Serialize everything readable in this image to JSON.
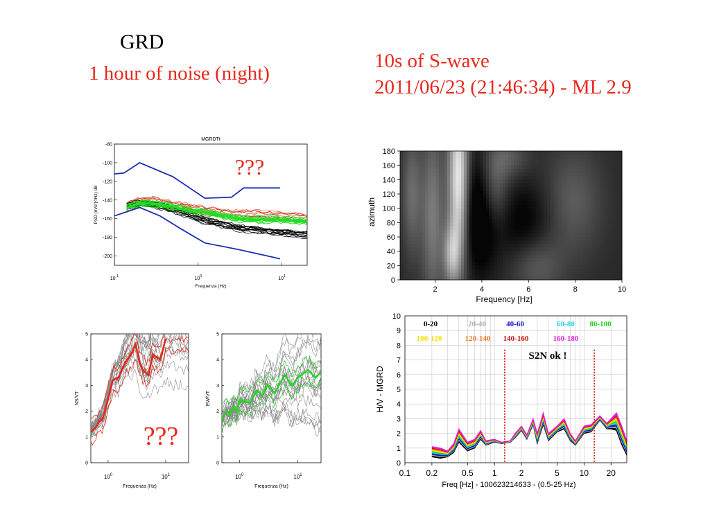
{
  "slide": {
    "station": "GRD",
    "noise_caption": "1 hour of noise (night)",
    "swave_caption": "10s of S-wave",
    "event_caption": "2011/06/23 (21:46:34) - ML 2.9"
  },
  "colors": {
    "accent_red": "#e8281e",
    "psd_upper": "#1b2fb3",
    "psd_black": "#000000",
    "psd_red": "#cc2200",
    "psd_green": "#22dd22",
    "hv_ns": "#e32a1c",
    "hv_ew": "#2ccf2c",
    "hv_gray": "#888888"
  },
  "chart_data": [
    {
      "id": "psd",
      "type": "line",
      "title": "MGRDTt",
      "xlabel": "Frequenza (Hz)",
      "ylabel": "PSD (m/s²)²/Hz) dB",
      "x_scale": "log",
      "xlim": [
        0.1,
        20
      ],
      "ylim": [
        -210,
        -80
      ],
      "x_ticks": [
        {
          "v": 0.1,
          "base": "10",
          "exp": "-1"
        },
        {
          "v": 1,
          "base": "10",
          "exp": "0"
        },
        {
          "v": 10,
          "base": "10",
          "exp": "1"
        }
      ],
      "y_ticks": [
        -80,
        -100,
        -120,
        -140,
        -160,
        -180,
        -200
      ],
      "annotation": "???",
      "series": [
        {
          "role": "upper model",
          "color": "#1b2fb3",
          "x": [
            0.1,
            0.13,
            0.2,
            0.5,
            1.2,
            2.5,
            3.5,
            9.5
          ],
          "y": [
            -112,
            -111,
            -100,
            -115,
            -138,
            -137,
            -127,
            -127
          ]
        },
        {
          "role": "lower model",
          "color": "#1b2fb3",
          "x": [
            0.1,
            0.2,
            0.35,
            0.6,
            1.2,
            3,
            9.5
          ],
          "y": [
            -157,
            -148,
            -157,
            -170,
            -186,
            -193,
            -203
          ]
        },
        {
          "role": "psd black",
          "color": "#000000",
          "x": [
            0.14,
            0.2,
            0.3,
            0.5,
            0.8,
            1.2,
            2,
            3,
            5,
            10,
            20
          ],
          "y": [
            -147,
            -143,
            -145,
            -150,
            -156,
            -162,
            -166,
            -170,
            -172,
            -175,
            -177
          ]
        },
        {
          "role": "psd red",
          "color": "#cc2200",
          "x": [
            0.14,
            0.2,
            0.3,
            0.5,
            0.8,
            1.2,
            2,
            3,
            5,
            10,
            20
          ],
          "y": [
            -147,
            -141,
            -141,
            -145,
            -148,
            -151,
            -154,
            -155,
            -155,
            -157,
            -159
          ]
        },
        {
          "role": "psd green",
          "color": "#22dd22",
          "x": [
            0.14,
            0.2,
            0.3,
            0.5,
            0.8,
            1.2,
            2,
            3,
            5,
            10,
            20
          ],
          "y": [
            -148,
            -143,
            -144,
            -147,
            -151,
            -153,
            -157,
            -160,
            -161,
            -161,
            -163
          ]
        }
      ]
    },
    {
      "id": "ns",
      "type": "line",
      "xlabel": "Frequenza (Hz)",
      "ylabel": "NS/VT",
      "x_scale": "log",
      "xlim": [
        0.5,
        25
      ],
      "ylim": [
        0,
        5
      ],
      "y_ticks": [
        0,
        1,
        2,
        3,
        4,
        5
      ],
      "x_ticks": [
        {
          "v": 1,
          "base": "10",
          "exp": "0"
        },
        {
          "v": 10,
          "base": "10",
          "exp": "1"
        }
      ],
      "annotation": "???",
      "series": [
        {
          "role": "mean",
          "color": "#e32a1c",
          "x": [
            0.5,
            0.6,
            0.7,
            0.8,
            0.9,
            1.0,
            1.2,
            1.5,
            2,
            2.5,
            3,
            3.5,
            4,
            5,
            6,
            8,
            10
          ],
          "y": [
            1.2,
            1.35,
            1.6,
            1.7,
            2.1,
            2.5,
            3.2,
            3.3,
            3.9,
            4.2,
            4.6,
            3.9,
            3.6,
            3.4,
            4.2,
            4.0,
            4.8
          ]
        }
      ]
    },
    {
      "id": "ew",
      "type": "line",
      "xlabel": "Frequenza (Hz)",
      "ylabel": "EW/VT",
      "x_scale": "log",
      "xlim": [
        0.5,
        25
      ],
      "ylim": [
        0,
        5
      ],
      "y_ticks": [
        0,
        1,
        2,
        3,
        4,
        5
      ],
      "x_ticks": [
        {
          "v": 1,
          "base": "10",
          "exp": "0"
        },
        {
          "v": 10,
          "base": "10",
          "exp": "1"
        }
      ],
      "series": [
        {
          "role": "mean",
          "color": "#2ccf2c",
          "x": [
            0.5,
            0.6,
            0.7,
            0.8,
            0.9,
            1.0,
            1.2,
            1.5,
            2,
            2.5,
            3,
            4,
            5,
            6,
            8,
            10,
            15,
            20,
            25
          ],
          "y": [
            1.7,
            2.0,
            1.9,
            2.2,
            2.0,
            2.4,
            2.4,
            2.3,
            2.8,
            2.6,
            3.0,
            2.7,
            3.1,
            3.4,
            3.0,
            3.3,
            3.6,
            3.3,
            3.5
          ]
        }
      ]
    },
    {
      "id": "azimuth",
      "type": "heatmap",
      "xlabel": "Frequency [Hz]",
      "ylabel": "azimuth",
      "xlim": [
        0.5,
        10
      ],
      "ylim": [
        0,
        180
      ],
      "x_ticks": [
        2,
        4,
        6,
        8,
        10
      ],
      "y_ticks": [
        0,
        20,
        40,
        60,
        80,
        100,
        120,
        140,
        160,
        180
      ]
    },
    {
      "id": "hv",
      "type": "line",
      "xlabel": "Freq [Hz] - 100623214633 - (0.5-25 Hz)",
      "ylabel": "H/V - MGRD",
      "x_scale": "log",
      "xlim": [
        0.1,
        30
      ],
      "ylim": [
        0,
        10
      ],
      "x_ticks": [
        0.1,
        0.2,
        0.5,
        1,
        2,
        5,
        10,
        20
      ],
      "x_tick_labels": [
        "0.1",
        "0.2",
        "0.5",
        "1",
        "2",
        "5",
        "10",
        "20"
      ],
      "y_ticks": [
        0,
        1,
        2,
        3,
        4,
        5,
        6,
        7,
        8,
        9,
        10
      ],
      "annotation": "S2N ok !",
      "window_lines": [
        1.3,
        13
      ],
      "legend": [
        {
          "label": "0-20",
          "color": "#000000"
        },
        {
          "label": "20-40",
          "color": "#aaaaaa"
        },
        {
          "label": "40-60",
          "color": "#1616c8"
        },
        {
          "label": "60-80",
          "color": "#22d4e6"
        },
        {
          "label": "80-100",
          "color": "#20d020"
        },
        {
          "label": "100-120",
          "color": "#f0e000"
        },
        {
          "label": "120-140",
          "color": "#f07a2a"
        },
        {
          "label": "140-160",
          "color": "#d01010"
        },
        {
          "label": "160-180",
          "color": "#e020e0"
        }
      ],
      "x": [
        0.2,
        0.25,
        0.3,
        0.35,
        0.4,
        0.5,
        0.6,
        0.7,
        0.8,
        1.0,
        1.2,
        1.5,
        1.7,
        2.0,
        2.3,
        2.7,
        3.0,
        3.5,
        4,
        5,
        6,
        7,
        8,
        10,
        12,
        15,
        18,
        20,
        23,
        26,
        30
      ],
      "hv_upper": [
        1.1,
        1.0,
        0.8,
        1.3,
        2.3,
        1.4,
        1.6,
        2.2,
        1.5,
        1.6,
        1.4,
        1.5,
        2.0,
        2.5,
        1.9,
        3.0,
        2.0,
        3.4,
        2.0,
        2.5,
        3.0,
        2.0,
        1.5,
        2.5,
        2.6,
        3.2,
        2.7,
        3.0,
        3.4,
        2.6,
        1.5
      ],
      "hv_lower": [
        0.4,
        0.3,
        0.4,
        0.7,
        1.4,
        0.8,
        1.0,
        1.6,
        1.2,
        1.4,
        1.3,
        1.4,
        1.7,
        2.2,
        1.6,
        2.6,
        1.3,
        2.6,
        1.5,
        2.1,
        2.3,
        1.5,
        1.2,
        2.0,
        2.1,
        2.9,
        2.3,
        2.3,
        2.2,
        1.3,
        0.5
      ]
    }
  ]
}
